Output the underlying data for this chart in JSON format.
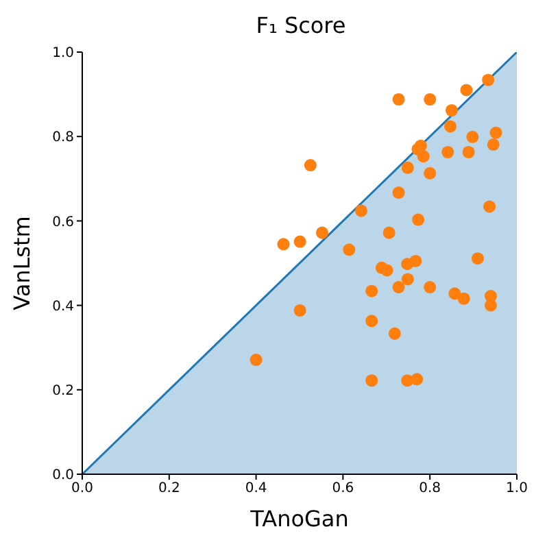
{
  "chart_data": {
    "type": "scatter",
    "title": "F₁ Score",
    "xlabel": "TAnoGan",
    "ylabel": "VanLstm",
    "xlim": [
      0,
      1
    ],
    "ylim": [
      0,
      1
    ],
    "xticks": [
      {
        "value": 0,
        "label": "0.0"
      },
      {
        "value": 0.2,
        "label": "0.2"
      },
      {
        "value": 0.4,
        "label": "0.4"
      },
      {
        "value": 0.6,
        "label": "0.6"
      },
      {
        "value": 0.8,
        "label": "0.8"
      },
      {
        "value": 1,
        "label": "1.0"
      }
    ],
    "yticks": [
      {
        "value": 0,
        "label": "0.0"
      },
      {
        "value": 0.2,
        "label": "0.2"
      },
      {
        "value": 0.4,
        "label": "0.4"
      },
      {
        "value": 0.6,
        "label": "0.6"
      },
      {
        "value": 0.8,
        "label": "0.8"
      },
      {
        "value": 1,
        "label": "1.0"
      }
    ],
    "grid": false,
    "legend": false,
    "series": [
      {
        "type": "area",
        "color": "#1f77b4",
        "x": [
          0,
          1
        ],
        "values": [
          0,
          1
        ]
      },
      {
        "marker": "circle",
        "color": "#ff7f0e",
        "x": [
          0.728,
          0.8,
          0.884,
          0.934,
          0.85,
          0.847,
          0.898,
          0.952,
          0.946,
          0.772,
          0.779,
          0.785,
          0.841,
          0.889,
          0.525,
          0.749,
          0.8,
          0.728,
          0.937,
          0.642,
          0.773,
          0.463,
          0.501,
          0.552,
          0.706,
          0.614,
          0.91,
          0.767,
          0.748,
          0.689,
          0.701,
          0.749,
          0.666,
          0.728,
          0.8,
          0.857,
          0.878,
          0.94,
          0.94,
          0.501,
          0.666,
          0.719,
          0.4,
          0.666,
          0.748,
          0.77
        ],
        "values": [
          0.888,
          0.888,
          0.91,
          0.934,
          0.862,
          0.824,
          0.799,
          0.809,
          0.781,
          0.77,
          0.778,
          0.753,
          0.763,
          0.763,
          0.732,
          0.726,
          0.713,
          0.667,
          0.634,
          0.624,
          0.603,
          0.545,
          0.551,
          0.572,
          0.572,
          0.532,
          0.511,
          0.505,
          0.498,
          0.489,
          0.483,
          0.462,
          0.434,
          0.443,
          0.443,
          0.428,
          0.416,
          0.422,
          0.4,
          0.388,
          0.363,
          0.333,
          0.271,
          0.222,
          0.222,
          0.225
        ]
      }
    ]
  }
}
